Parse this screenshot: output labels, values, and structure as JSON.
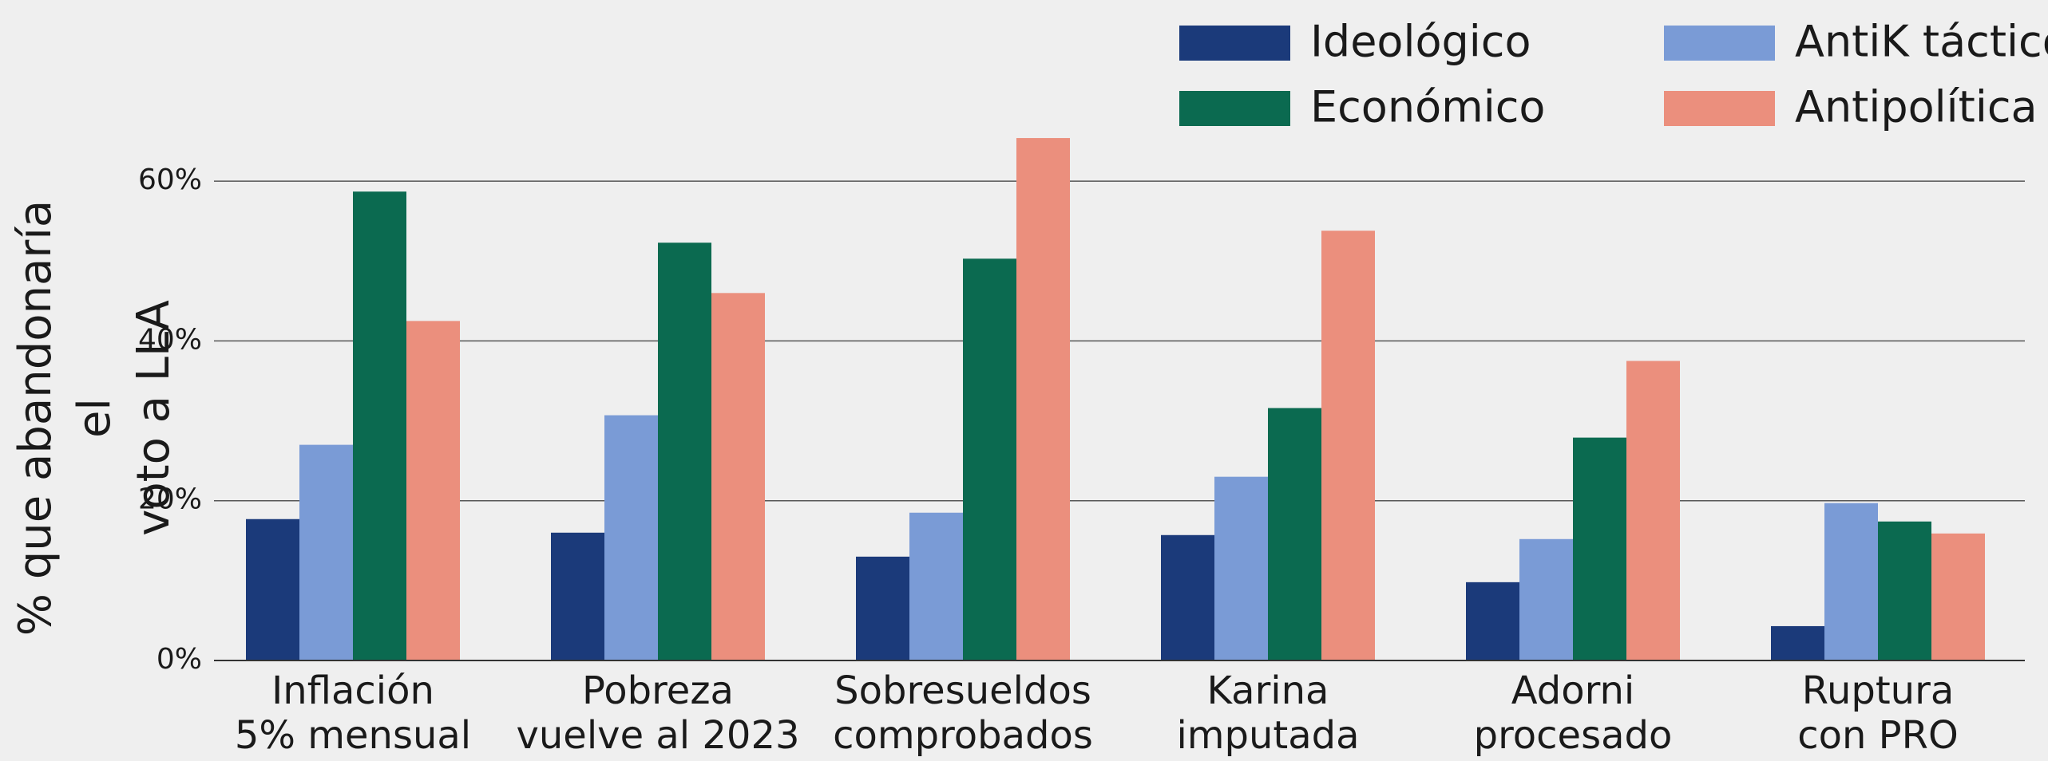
{
  "chart_data": {
    "type": "bar",
    "ylabel": "% que abandonaría el\nvoto a LLA",
    "categories": [
      "Inflación\n5% mensual",
      "Pobreza\nvuelve al 2023",
      "Sobresueldos\ncomprobados",
      "Karina\nimputada",
      "Adorni\nprocesado",
      "Ruptura\ncon PRO"
    ],
    "series": [
      {
        "name": "Ideológico",
        "color": "#1b3a7a",
        "values": [
          17.7,
          16,
          13,
          15.7,
          9.8,
          4.3
        ]
      },
      {
        "name": "AntiK táctico",
        "color": "#7a9bd6",
        "values": [
          27,
          30.7,
          18.5,
          23,
          15.2,
          19.7
        ]
      },
      {
        "name": "Económico",
        "color": "#0b6a50",
        "values": [
          58.7,
          52.3,
          50.3,
          31.6,
          27.9,
          17.4
        ]
      },
      {
        "name": "Antipolítica",
        "color": "#eb8f7d",
        "values": [
          42.5,
          46,
          65.4,
          53.8,
          37.5,
          15.9
        ]
      }
    ],
    "ylim": [
      0,
      70
    ],
    "yticks": [
      {
        "value": 0,
        "label": "0%"
      },
      {
        "value": 20,
        "label": "20%"
      },
      {
        "value": 40,
        "label": "40%"
      },
      {
        "value": 60,
        "label": "60%"
      }
    ],
    "grid": true,
    "legend": "top-right"
  }
}
